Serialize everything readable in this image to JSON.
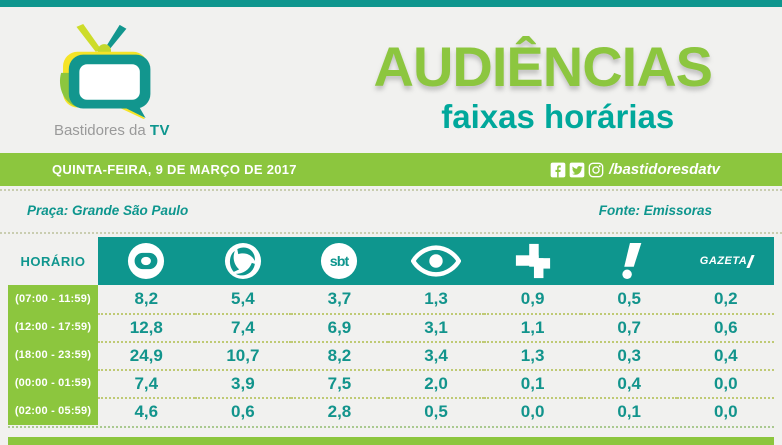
{
  "brand": {
    "prefix": "Bastidores da",
    "tv": "TV"
  },
  "title": {
    "main": "AUDIÊNCIAS",
    "subtitle": "faixas horárias"
  },
  "date_bar": {
    "date": "QUINTA-FEIRA, 9 DE MARÇO DE 2017",
    "social_handle": "/bastidoresdatv",
    "social_icons": [
      "facebook-icon",
      "twitter-icon",
      "instagram-icon"
    ]
  },
  "meta": {
    "praca": "Praça: Grande São Paulo",
    "fonte": "Fonte: Emissoras"
  },
  "colors": {
    "teal": "#0E968E",
    "green": "#8CC63E",
    "title_green": "#8CC63F",
    "subtitle_teal": "#00A89B",
    "background": "#F1F1EF",
    "value_text": "#12948C"
  },
  "channels": [
    {
      "name": "Globo",
      "icon": "globo-icon"
    },
    {
      "name": "Record",
      "icon": "record-icon"
    },
    {
      "name": "SBT",
      "icon": "sbt-icon",
      "logo_text": "sbt"
    },
    {
      "name": "Band",
      "icon": "band-icon"
    },
    {
      "name": "TV Cultura",
      "icon": "cultura-icon"
    },
    {
      "name": "RedeTV!",
      "icon": "redetv-icon"
    },
    {
      "name": "Gazeta",
      "icon": "gazeta-icon",
      "logo_text": "GAZETA"
    }
  ],
  "chart_data": {
    "type": "table",
    "title": "AUDIÊNCIAS faixas horárias",
    "row_header": "HORÁRIO",
    "columns": [
      "Globo",
      "Record",
      "SBT",
      "Band",
      "TV Cultura",
      "RedeTV!",
      "Gazeta"
    ],
    "rows": [
      {
        "label": "(07:00 - 11:59)",
        "values": [
          "8,2",
          "5,4",
          "3,7",
          "1,3",
          "0,9",
          "0,5",
          "0,2"
        ]
      },
      {
        "label": "(12:00 - 17:59)",
        "values": [
          "12,8",
          "7,4",
          "6,9",
          "3,1",
          "1,1",
          "0,7",
          "0,6"
        ]
      },
      {
        "label": "(18:00 - 23:59)",
        "values": [
          "24,9",
          "10,7",
          "8,2",
          "3,4",
          "1,3",
          "0,3",
          "0,4"
        ]
      },
      {
        "label": "(00:00 - 01:59)",
        "values": [
          "7,4",
          "3,9",
          "7,5",
          "2,0",
          "0,1",
          "0,4",
          "0,0"
        ]
      },
      {
        "label": "(02:00 - 05:59)",
        "values": [
          "4,6",
          "0,6",
          "2,8",
          "0,5",
          "0,0",
          "0,1",
          "0,0"
        ]
      }
    ]
  }
}
